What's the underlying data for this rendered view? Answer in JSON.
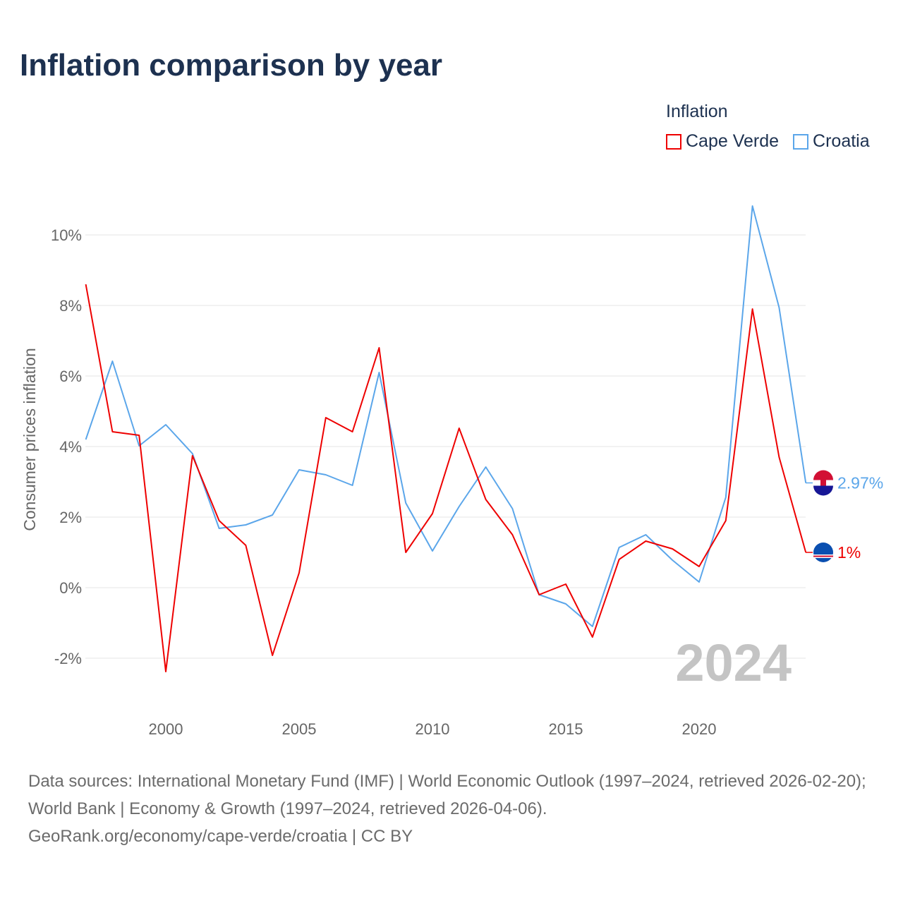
{
  "title": "Inflation comparison by year",
  "legend_title": "Inflation",
  "watermark_year": "2024",
  "footer": {
    "sources": "Data sources: International Monetary Fund (IMF) | World Economic Outlook (1997–2024, retrieved 2026-02-20); World Bank | Economy & Growth (1997–2024, retrieved 2026-04-06).",
    "link": "GeoRank.org/economy/cape-verde/croatia | CC BY"
  },
  "chart_data": {
    "type": "line",
    "title": "Inflation comparison by year",
    "xlabel": "",
    "ylabel": "Consumer prices inflation",
    "xlim": [
      1997,
      2024
    ],
    "ylim": [
      -3,
      11
    ],
    "grid": true,
    "legend_placement": "top-right",
    "x_ticks": [
      2000,
      2005,
      2010,
      2015,
      2020
    ],
    "x_tick_labels": [
      "2000",
      "2005",
      "2010",
      "2015",
      "2020"
    ],
    "y_ticks": [
      -2,
      0,
      2,
      4,
      6,
      8,
      10
    ],
    "y_tick_labels": [
      "-2%",
      "0%",
      "2%",
      "4%",
      "6%",
      "8%",
      "10%"
    ],
    "x": [
      1997,
      1998,
      1999,
      2000,
      2001,
      2002,
      2003,
      2004,
      2005,
      2006,
      2007,
      2008,
      2009,
      2010,
      2011,
      2012,
      2013,
      2014,
      2015,
      2016,
      2017,
      2018,
      2019,
      2020,
      2021,
      2022,
      2023,
      2024
    ],
    "series": [
      {
        "name": "Cape Verde",
        "color": "#ee0000",
        "end_label": "1%",
        "values": [
          8.6,
          4.42,
          4.32,
          -2.38,
          3.74,
          1.9,
          1.2,
          -1.92,
          0.42,
          4.82,
          4.42,
          6.8,
          1.0,
          2.1,
          4.52,
          2.5,
          1.5,
          -0.2,
          0.1,
          -1.4,
          0.8,
          1.32,
          1.1,
          0.6,
          1.9,
          7.9,
          3.7,
          1.0
        ]
      },
      {
        "name": "Croatia",
        "color": "#5ba6ea",
        "end_label": "2.97%",
        "values": [
          4.2,
          6.42,
          4.02,
          4.62,
          3.8,
          1.68,
          1.78,
          2.06,
          3.34,
          3.2,
          2.9,
          6.1,
          2.4,
          1.04,
          2.3,
          3.42,
          2.24,
          -0.2,
          -0.46,
          -1.1,
          1.14,
          1.5,
          0.78,
          0.16,
          2.56,
          10.82,
          7.94,
          2.97
        ]
      }
    ]
  }
}
